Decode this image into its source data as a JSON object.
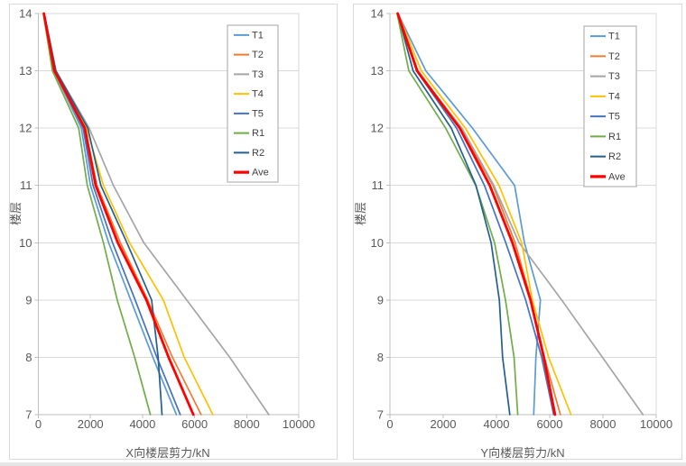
{
  "style": {
    "panel_border_color": "#d9d9d9",
    "plot_border_color": "#d9d9d9",
    "gridline_color": "#d9d9d9",
    "axis_line_color": "#bfbfbf",
    "tick_label_color": "#595959",
    "legend_border_color": "#a6a6a6",
    "emphasis_color": "#ff0000"
  },
  "chart_data": [
    {
      "id": "x-direction-story-shear",
      "type": "line",
      "orientation": "value-on-x-floor-on-y",
      "xlabel": "X向楼层剪力/kN",
      "ylabel": "楼层",
      "x_ticks": [
        0,
        2000,
        4000,
        6000,
        8000,
        10000
      ],
      "xlim": [
        0,
        10000
      ],
      "floors": [
        14,
        13,
        12,
        11,
        10,
        9,
        8,
        7
      ],
      "ylim": [
        7,
        14
      ],
      "grid": "horizontal",
      "legend_position": "inside-upper-right",
      "series": [
        {
          "name": "T1",
          "color": "#5b9bd5",
          "emphasis": false,
          "values": [
            200,
            600,
            1650,
            2000,
            2700,
            3550,
            4400,
            5300
          ]
        },
        {
          "name": "T2",
          "color": "#ed7d31",
          "emphasis": false,
          "values": [
            220,
            650,
            1800,
            2250,
            3150,
            4200,
            5150,
            6250
          ]
        },
        {
          "name": "T3",
          "color": "#a5a5a5",
          "emphasis": false,
          "values": [
            230,
            680,
            1950,
            2880,
            4050,
            5700,
            7350,
            8850
          ]
        },
        {
          "name": "T4",
          "color": "#ffc000",
          "emphasis": false,
          "values": [
            210,
            630,
            1850,
            2500,
            3500,
            4800,
            5600,
            6700
          ]
        },
        {
          "name": "T5",
          "color": "#4472c4",
          "emphasis": false,
          "values": [
            215,
            630,
            1720,
            2100,
            2850,
            3720,
            4550,
            5450
          ]
        },
        {
          "name": "R1",
          "color": "#70ad47",
          "emphasis": false,
          "values": [
            190,
            540,
            1550,
            1880,
            2500,
            3030,
            3700,
            4300
          ]
        },
        {
          "name": "R2",
          "color": "#255e91",
          "emphasis": false,
          "values": [
            225,
            670,
            1900,
            2400,
            3400,
            4350,
            4600,
            4750
          ]
        },
        {
          "name": "Ave",
          "color": "#ff0000",
          "emphasis": true,
          "values": [
            210,
            620,
            1780,
            2200,
            3050,
            4150,
            5000,
            5950
          ]
        }
      ]
    },
    {
      "id": "y-direction-story-shear",
      "type": "line",
      "orientation": "value-on-x-floor-on-y",
      "xlabel": "Y向楼层剪力/kN",
      "ylabel": "楼层",
      "x_ticks": [
        0,
        2000,
        4000,
        6000,
        8000,
        10000
      ],
      "xlim": [
        0,
        10000
      ],
      "floors": [
        14,
        13,
        12,
        11,
        10,
        9,
        8,
        7
      ],
      "ylim": [
        7,
        14
      ],
      "grid": "horizontal",
      "legend_position": "inside-upper-right",
      "series": [
        {
          "name": "T1",
          "color": "#5b9bd5",
          "emphasis": false,
          "values": [
            300,
            1350,
            3100,
            4680,
            5050,
            5650,
            5480,
            5400
          ]
        },
        {
          "name": "T2",
          "color": "#ed7d31",
          "emphasis": false,
          "values": [
            300,
            1050,
            2650,
            3870,
            4700,
            5300,
            5800,
            6400
          ]
        },
        {
          "name": "T3",
          "color": "#a5a5a5",
          "emphasis": false,
          "values": [
            290,
            1020,
            2700,
            3900,
            4850,
            6450,
            7980,
            9500
          ]
        },
        {
          "name": "T4",
          "color": "#ffc000",
          "emphasis": false,
          "values": [
            300,
            1180,
            2830,
            4100,
            4950,
            5350,
            5960,
            6800
          ]
        },
        {
          "name": "T5",
          "color": "#4472c4",
          "emphasis": false,
          "values": [
            295,
            1000,
            2500,
            3550,
            4350,
            5100,
            5700,
            6150
          ]
        },
        {
          "name": "R1",
          "color": "#70ad47",
          "emphasis": false,
          "values": [
            270,
            710,
            2090,
            3220,
            3930,
            4340,
            4660,
            4800
          ]
        },
        {
          "name": "R2",
          "color": "#255e91",
          "emphasis": false,
          "values": [
            290,
            870,
            2300,
            3230,
            3800,
            4110,
            4230,
            4500
          ]
        },
        {
          "name": "Ave",
          "color": "#ff0000",
          "emphasis": true,
          "values": [
            292,
            1020,
            2620,
            3750,
            4600,
            5280,
            5780,
            6200
          ]
        }
      ]
    }
  ]
}
